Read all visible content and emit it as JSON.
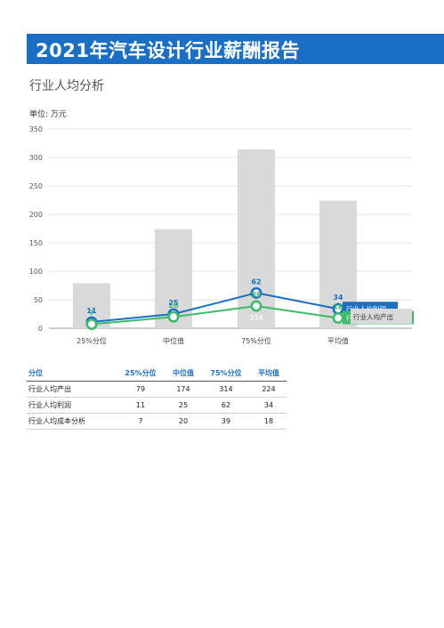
{
  "header": {
    "title": "2021年汽车设计行业薪酬报告",
    "subtitle": "行业人均分析"
  },
  "colors": {
    "banner": "#1a6fc4",
    "bar": "#d9d9d9",
    "profit_line": "#1a6fc4",
    "cost_line": "#3dbb6a"
  },
  "chart_data": {
    "type": "bar",
    "unit_label": "单位: 万元",
    "categories": [
      "25%分位",
      "中位值",
      "75%分位",
      "平均值"
    ],
    "ylim": [
      0,
      350
    ],
    "yticks": [
      0,
      50,
      100,
      150,
      200,
      250,
      300,
      350
    ],
    "grid": true,
    "series": [
      {
        "name": "行业人均产出",
        "kind": "bar",
        "values": [
          79,
          174,
          314,
          224
        ]
      },
      {
        "name": "行业人均利润",
        "kind": "line",
        "values": [
          11,
          25,
          62,
          34
        ]
      },
      {
        "name": "行业人均成本分析",
        "kind": "line",
        "values": [
          7,
          20,
          39,
          18
        ]
      }
    ]
  },
  "table": {
    "headers": [
      "分位",
      "25%分位",
      "中位值",
      "75%分位",
      "平均值"
    ],
    "rows": [
      [
        "行业人均产出",
        "79",
        "174",
        "314",
        "224"
      ],
      [
        "行业人均利润",
        "11",
        "25",
        "62",
        "34"
      ],
      [
        "行业人均成本分析",
        "7",
        "20",
        "39",
        "18"
      ]
    ]
  }
}
